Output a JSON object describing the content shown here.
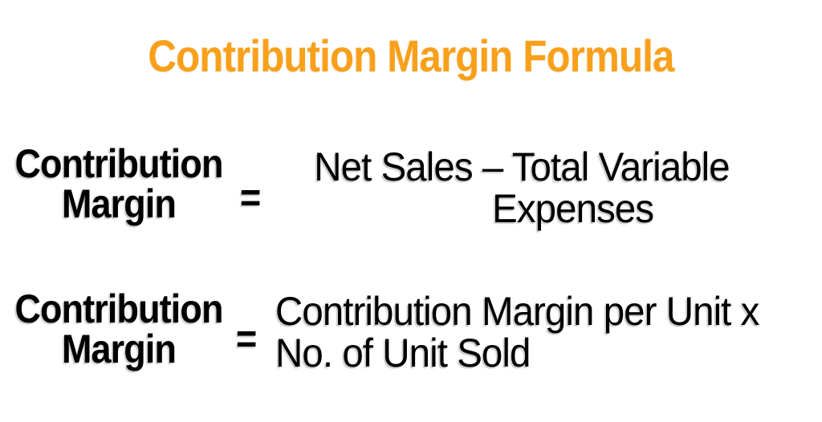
{
  "title": "Contribution Margin Formula",
  "colors": {
    "title": "#F9A01B",
    "text": "#000000",
    "background": "#FFFFFF"
  },
  "formulas": [
    {
      "lhs": {
        "line1": "Contribution",
        "line2": "Margin"
      },
      "operator": "=",
      "rhs": {
        "line1": "Net Sales – Total Variable",
        "line2": "Expenses"
      }
    },
    {
      "lhs": {
        "line1": "Contribution",
        "line2": "Margin"
      },
      "operator": "=",
      "rhs": {
        "line1": "Contribution Margin per Unit x",
        "line2": "No. of Unit Sold"
      }
    }
  ]
}
